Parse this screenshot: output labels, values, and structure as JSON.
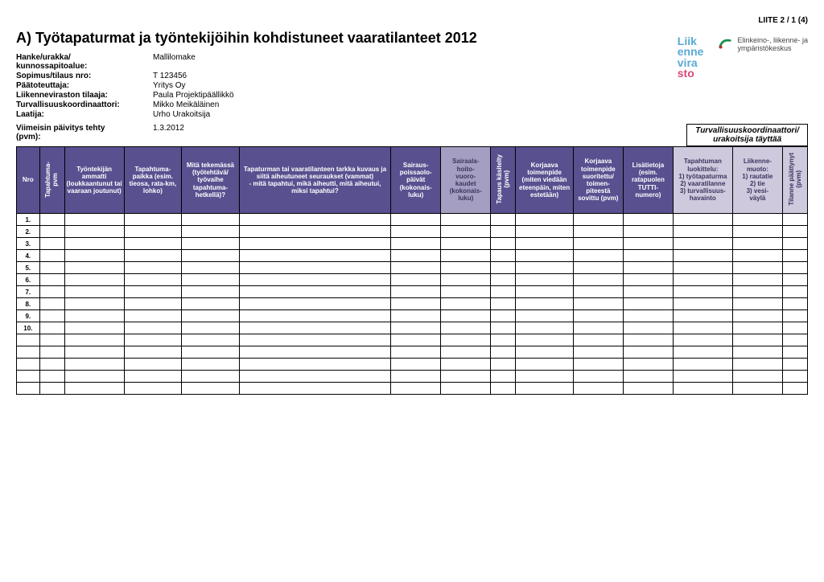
{
  "page_header": "LIITE 2 / 1 (4)",
  "title": "A) Työtapaturmat ja työntekijöihin kohdistuneet vaaratilanteet 2012",
  "meta": {
    "rows": [
      {
        "label": "Hanke/urakka/\nkunnossapitoalue:",
        "value": "Mallilomake"
      },
      {
        "label": "Sopimus/tilaus nro:",
        "value": "T 123456"
      },
      {
        "label": "Päätoteuttaja:",
        "value": "Yritys Oy"
      },
      {
        "label": "Liikenneviraston tilaaja:",
        "value": "Paula Projektipäällikkö"
      },
      {
        "label": "Turvallisuuskoordinaattori:",
        "value": "Mikko Meikäläinen"
      },
      {
        "label": "Laatija:",
        "value": "Urho Urakoitsija"
      }
    ]
  },
  "update": {
    "label": "Viimeisin päivitys tehty\n(pvm):",
    "value": "1.3.2012",
    "coord_box": "Turvallisuuskoordinaattori/\nurakoitsija täyttää"
  },
  "logos": {
    "logo1_lines": [
      "Liik",
      "enne",
      "vira"
    ],
    "logo1_last": "sto",
    "logo2_text": "Elinkeino-, liikenne- ja\nympäristökeskus"
  },
  "colors": {
    "header_dark": "#58508f",
    "header_light": "#a49ec2",
    "header_pale": "#cfc9de",
    "pale_text": "#3b355e",
    "border": "#000000"
  },
  "table": {
    "headers": [
      {
        "key": "nro",
        "text": "Nro",
        "class": "hdr-dark",
        "width": "c-nro"
      },
      {
        "key": "h1",
        "text": "Tapahtuma-\npvm",
        "class": "hdr-dark",
        "width": "c-v1",
        "vertical": true
      },
      {
        "key": "h2",
        "text": "Työntekijän ammatti (loukkaantunut tai vaaraan joutunut)",
        "class": "hdr-dark",
        "width": "c-txt-s"
      },
      {
        "key": "h3",
        "text": "Tapahtuma-\npaikka (esim. tieosa, rata-km, lohko)",
        "class": "hdr-dark",
        "width": "c-txt-m"
      },
      {
        "key": "h4",
        "text": "Mitä tekemässä (työtehtävä/ työvaihe tapahtuma-\nhetkellä)?",
        "class": "hdr-dark",
        "width": "c-txt-m"
      },
      {
        "key": "h5",
        "text": "Tapaturman tai vaaratilanteen tarkka kuvaus ja siitä aiheutuneet seuraukset (vammat)\n- mitä tapahtui, mikä aiheutti, mitä aiheutui, miksi tapahtui?",
        "class": "hdr-dark",
        "width": "c-txt-l"
      },
      {
        "key": "h6",
        "text": "Sairaus-\npoissaolo-\npäivät (kokonais-\nluku)",
        "class": "hdr-dark",
        "width": "c-txt-xs"
      },
      {
        "key": "h7",
        "text": "Sairaala-\nhoito-\nvuoro-\nkaudet (kokonais-\nluku)",
        "class": "hdr-light",
        "width": "c-txt-xs"
      },
      {
        "key": "h8",
        "text": "Tapaus käsitelty\n(pvm)",
        "class": "hdr-dark",
        "width": "c-v2",
        "vertical": true
      },
      {
        "key": "h9",
        "text": "Korjaava toimenpide (miten viedään eteenpäin, miten estetään)",
        "class": "hdr-dark",
        "width": "c-txt-m"
      },
      {
        "key": "h10",
        "text": "Korjaava toimenpide suoritettu/ toimen-\npiteestä sovittu (pvm)",
        "class": "hdr-dark",
        "width": "c-txt-xs"
      },
      {
        "key": "h11",
        "text": "Lisätietoja (esim. ratapuolen TUTTI-\nnumero)",
        "class": "hdr-dark",
        "width": "c-txt-xs"
      },
      {
        "key": "h12",
        "text": "Tapahtuman luokittelu:\n1) työtapaturma\n2) vaaratilanne\n3) turvallisuus-\nhavainto",
        "class": "hdr-pale",
        "width": "c-txt-s"
      },
      {
        "key": "h13",
        "text": "Liikenne-\nmuoto:\n1) rautatie\n2) tie\n3) vesi-\nväylä",
        "class": "hdr-pale",
        "width": "c-txt-xs"
      },
      {
        "key": "h14",
        "text": "Tilanne päättynyt\n(pvm)",
        "class": "hdr-pale",
        "width": "c-v3",
        "vertical": true
      }
    ],
    "numbered_rows": [
      "1.",
      "2.",
      "3.",
      "4.",
      "5.",
      "6.",
      "7.",
      "8.",
      "9.",
      "10."
    ],
    "blank_rows": 5
  }
}
